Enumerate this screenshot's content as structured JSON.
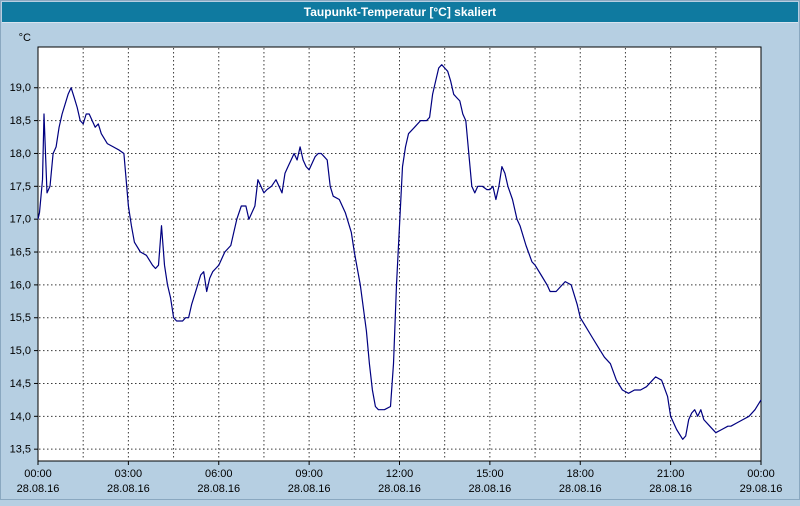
{
  "header": {
    "title": "Taupunkt-Temperatur [°C] skaliert"
  },
  "colors": {
    "titlebar_bg": "#0f7aa0",
    "titlebar_text": "#ffffff",
    "panel_bg": "#b6cfe2",
    "plot_bg": "#ffffff",
    "grid": "#3a3a3a",
    "axis": "#000000",
    "line": "#000080",
    "tick_text": "#000000"
  },
  "chart_data": {
    "type": "line",
    "title": "Taupunkt-Temperatur [°C] skaliert",
    "xlabel": "",
    "ylabel": "°C",
    "ylim": [
      13.32,
      19.62
    ],
    "xlim_hours": [
      0,
      24
    ],
    "grid": {
      "on": true,
      "x_step_hours": 1.5,
      "y_step": 0.5
    },
    "legend": "none",
    "y_ticks": [
      {
        "value": 19.0,
        "label": "19,0"
      },
      {
        "value": 18.5,
        "label": "18,5"
      },
      {
        "value": 18.0,
        "label": "18,0"
      },
      {
        "value": 17.5,
        "label": "17,5"
      },
      {
        "value": 17.0,
        "label": "17,0"
      },
      {
        "value": 16.5,
        "label": "16,5"
      },
      {
        "value": 16.0,
        "label": "16,0"
      },
      {
        "value": 15.5,
        "label": "15,5"
      },
      {
        "value": 15.0,
        "label": "15,0"
      },
      {
        "value": 14.5,
        "label": "14,5"
      },
      {
        "value": 14.0,
        "label": "14,0"
      },
      {
        "value": 13.5,
        "label": "13,5"
      }
    ],
    "x_ticks": [
      {
        "hour": 0,
        "time": "00:00",
        "date": "28.08.16"
      },
      {
        "hour": 3,
        "time": "03:00",
        "date": "28.08.16"
      },
      {
        "hour": 6,
        "time": "06:00",
        "date": "28.08.16"
      },
      {
        "hour": 9,
        "time": "09:00",
        "date": "28.08.16"
      },
      {
        "hour": 12,
        "time": "12:00",
        "date": "28.08.16"
      },
      {
        "hour": 15,
        "time": "15:00",
        "date": "28.08.16"
      },
      {
        "hour": 18,
        "time": "18:00",
        "date": "28.08.16"
      },
      {
        "hour": 21,
        "time": "21:00",
        "date": "28.08.16"
      },
      {
        "hour": 24,
        "time": "00:00",
        "date": "29.08.16"
      }
    ],
    "series": [
      {
        "name": "Taupunkt-Temperatur",
        "color": "#000080",
        "points": [
          [
            0.0,
            17.0
          ],
          [
            0.05,
            17.1
          ],
          [
            0.15,
            17.6
          ],
          [
            0.2,
            18.6
          ],
          [
            0.25,
            18.0
          ],
          [
            0.3,
            17.4
          ],
          [
            0.4,
            17.5
          ],
          [
            0.5,
            18.0
          ],
          [
            0.55,
            18.05
          ],
          [
            0.6,
            18.1
          ],
          [
            0.7,
            18.4
          ],
          [
            0.8,
            18.6
          ],
          [
            0.9,
            18.75
          ],
          [
            1.0,
            18.9
          ],
          [
            1.1,
            19.0
          ],
          [
            1.2,
            18.85
          ],
          [
            1.3,
            18.7
          ],
          [
            1.4,
            18.5
          ],
          [
            1.5,
            18.45
          ],
          [
            1.6,
            18.6
          ],
          [
            1.7,
            18.6
          ],
          [
            1.8,
            18.5
          ],
          [
            1.9,
            18.4
          ],
          [
            2.0,
            18.45
          ],
          [
            2.1,
            18.3
          ],
          [
            2.3,
            18.15
          ],
          [
            2.5,
            18.1
          ],
          [
            2.7,
            18.05
          ],
          [
            2.85,
            18.0
          ],
          [
            3.0,
            17.2
          ],
          [
            3.1,
            16.9
          ],
          [
            3.2,
            16.65
          ],
          [
            3.4,
            16.5
          ],
          [
            3.6,
            16.45
          ],
          [
            3.8,
            16.3
          ],
          [
            3.9,
            16.25
          ],
          [
            4.0,
            16.3
          ],
          [
            4.1,
            16.9
          ],
          [
            4.2,
            16.3
          ],
          [
            4.3,
            16.0
          ],
          [
            4.4,
            15.8
          ],
          [
            4.5,
            15.5
          ],
          [
            4.6,
            15.45
          ],
          [
            4.8,
            15.45
          ],
          [
            4.9,
            15.5
          ],
          [
            5.0,
            15.5
          ],
          [
            5.1,
            15.7
          ],
          [
            5.3,
            16.0
          ],
          [
            5.4,
            16.15
          ],
          [
            5.5,
            16.2
          ],
          [
            5.6,
            15.9
          ],
          [
            5.7,
            16.1
          ],
          [
            5.8,
            16.2
          ],
          [
            5.9,
            16.25
          ],
          [
            6.0,
            16.3
          ],
          [
            6.2,
            16.5
          ],
          [
            6.4,
            16.6
          ],
          [
            6.5,
            16.8
          ],
          [
            6.6,
            17.0
          ],
          [
            6.75,
            17.2
          ],
          [
            6.9,
            17.2
          ],
          [
            7.0,
            17.0
          ],
          [
            7.1,
            17.1
          ],
          [
            7.2,
            17.2
          ],
          [
            7.3,
            17.6
          ],
          [
            7.4,
            17.5
          ],
          [
            7.5,
            17.4
          ],
          [
            7.6,
            17.45
          ],
          [
            7.75,
            17.5
          ],
          [
            7.9,
            17.6
          ],
          [
            8.0,
            17.5
          ],
          [
            8.1,
            17.4
          ],
          [
            8.2,
            17.7
          ],
          [
            8.3,
            17.8
          ],
          [
            8.4,
            17.9
          ],
          [
            8.5,
            18.0
          ],
          [
            8.6,
            17.9
          ],
          [
            8.7,
            18.1
          ],
          [
            8.8,
            17.9
          ],
          [
            8.9,
            17.8
          ],
          [
            9.0,
            17.75
          ],
          [
            9.1,
            17.85
          ],
          [
            9.2,
            17.95
          ],
          [
            9.3,
            18.0
          ],
          [
            9.4,
            18.0
          ],
          [
            9.5,
            17.95
          ],
          [
            9.6,
            17.9
          ],
          [
            9.7,
            17.5
          ],
          [
            9.8,
            17.35
          ],
          [
            10.0,
            17.3
          ],
          [
            10.2,
            17.1
          ],
          [
            10.4,
            16.8
          ],
          [
            10.5,
            16.5
          ],
          [
            10.7,
            16.0
          ],
          [
            10.9,
            15.3
          ],
          [
            11.0,
            14.8
          ],
          [
            11.1,
            14.4
          ],
          [
            11.2,
            14.15
          ],
          [
            11.3,
            14.1
          ],
          [
            11.5,
            14.1
          ],
          [
            11.7,
            14.15
          ],
          [
            11.8,
            14.8
          ],
          [
            11.9,
            16.0
          ],
          [
            12.0,
            16.9
          ],
          [
            12.1,
            17.8
          ],
          [
            12.2,
            18.1
          ],
          [
            12.3,
            18.3
          ],
          [
            12.5,
            18.4
          ],
          [
            12.7,
            18.5
          ],
          [
            12.9,
            18.5
          ],
          [
            13.0,
            18.55
          ],
          [
            13.1,
            18.9
          ],
          [
            13.2,
            19.1
          ],
          [
            13.3,
            19.3
          ],
          [
            13.4,
            19.35
          ],
          [
            13.5,
            19.3
          ],
          [
            13.6,
            19.25
          ],
          [
            13.7,
            19.1
          ],
          [
            13.8,
            18.9
          ],
          [
            13.9,
            18.85
          ],
          [
            14.0,
            18.8
          ],
          [
            14.1,
            18.6
          ],
          [
            14.2,
            18.5
          ],
          [
            14.3,
            18.0
          ],
          [
            14.4,
            17.5
          ],
          [
            14.5,
            17.4
          ],
          [
            14.6,
            17.5
          ],
          [
            14.75,
            17.5
          ],
          [
            14.9,
            17.45
          ],
          [
            15.0,
            17.45
          ],
          [
            15.1,
            17.5
          ],
          [
            15.2,
            17.3
          ],
          [
            15.3,
            17.5
          ],
          [
            15.4,
            17.8
          ],
          [
            15.5,
            17.7
          ],
          [
            15.6,
            17.5
          ],
          [
            15.75,
            17.3
          ],
          [
            15.9,
            17.0
          ],
          [
            16.0,
            16.9
          ],
          [
            16.2,
            16.6
          ],
          [
            16.4,
            16.35
          ],
          [
            16.5,
            16.3
          ],
          [
            16.7,
            16.15
          ],
          [
            16.9,
            16.0
          ],
          [
            17.0,
            15.9
          ],
          [
            17.2,
            15.9
          ],
          [
            17.4,
            16.0
          ],
          [
            17.5,
            16.05
          ],
          [
            17.7,
            16.0
          ],
          [
            17.9,
            15.7
          ],
          [
            18.0,
            15.5
          ],
          [
            18.2,
            15.35
          ],
          [
            18.4,
            15.2
          ],
          [
            18.6,
            15.05
          ],
          [
            18.8,
            14.9
          ],
          [
            19.0,
            14.8
          ],
          [
            19.2,
            14.55
          ],
          [
            19.4,
            14.4
          ],
          [
            19.6,
            14.35
          ],
          [
            19.8,
            14.4
          ],
          [
            20.0,
            14.4
          ],
          [
            20.2,
            14.45
          ],
          [
            20.4,
            14.55
          ],
          [
            20.5,
            14.6
          ],
          [
            20.7,
            14.55
          ],
          [
            20.9,
            14.3
          ],
          [
            21.0,
            14.0
          ],
          [
            21.2,
            13.8
          ],
          [
            21.4,
            13.65
          ],
          [
            21.5,
            13.7
          ],
          [
            21.6,
            13.95
          ],
          [
            21.7,
            14.05
          ],
          [
            21.8,
            14.1
          ],
          [
            21.9,
            14.0
          ],
          [
            22.0,
            14.1
          ],
          [
            22.1,
            13.95
          ],
          [
            22.3,
            13.85
          ],
          [
            22.5,
            13.75
          ],
          [
            22.7,
            13.8
          ],
          [
            22.9,
            13.85
          ],
          [
            23.0,
            13.85
          ],
          [
            23.2,
            13.9
          ],
          [
            23.4,
            13.95
          ],
          [
            23.6,
            14.0
          ],
          [
            23.8,
            14.1
          ],
          [
            24.0,
            14.25
          ]
        ]
      }
    ]
  }
}
